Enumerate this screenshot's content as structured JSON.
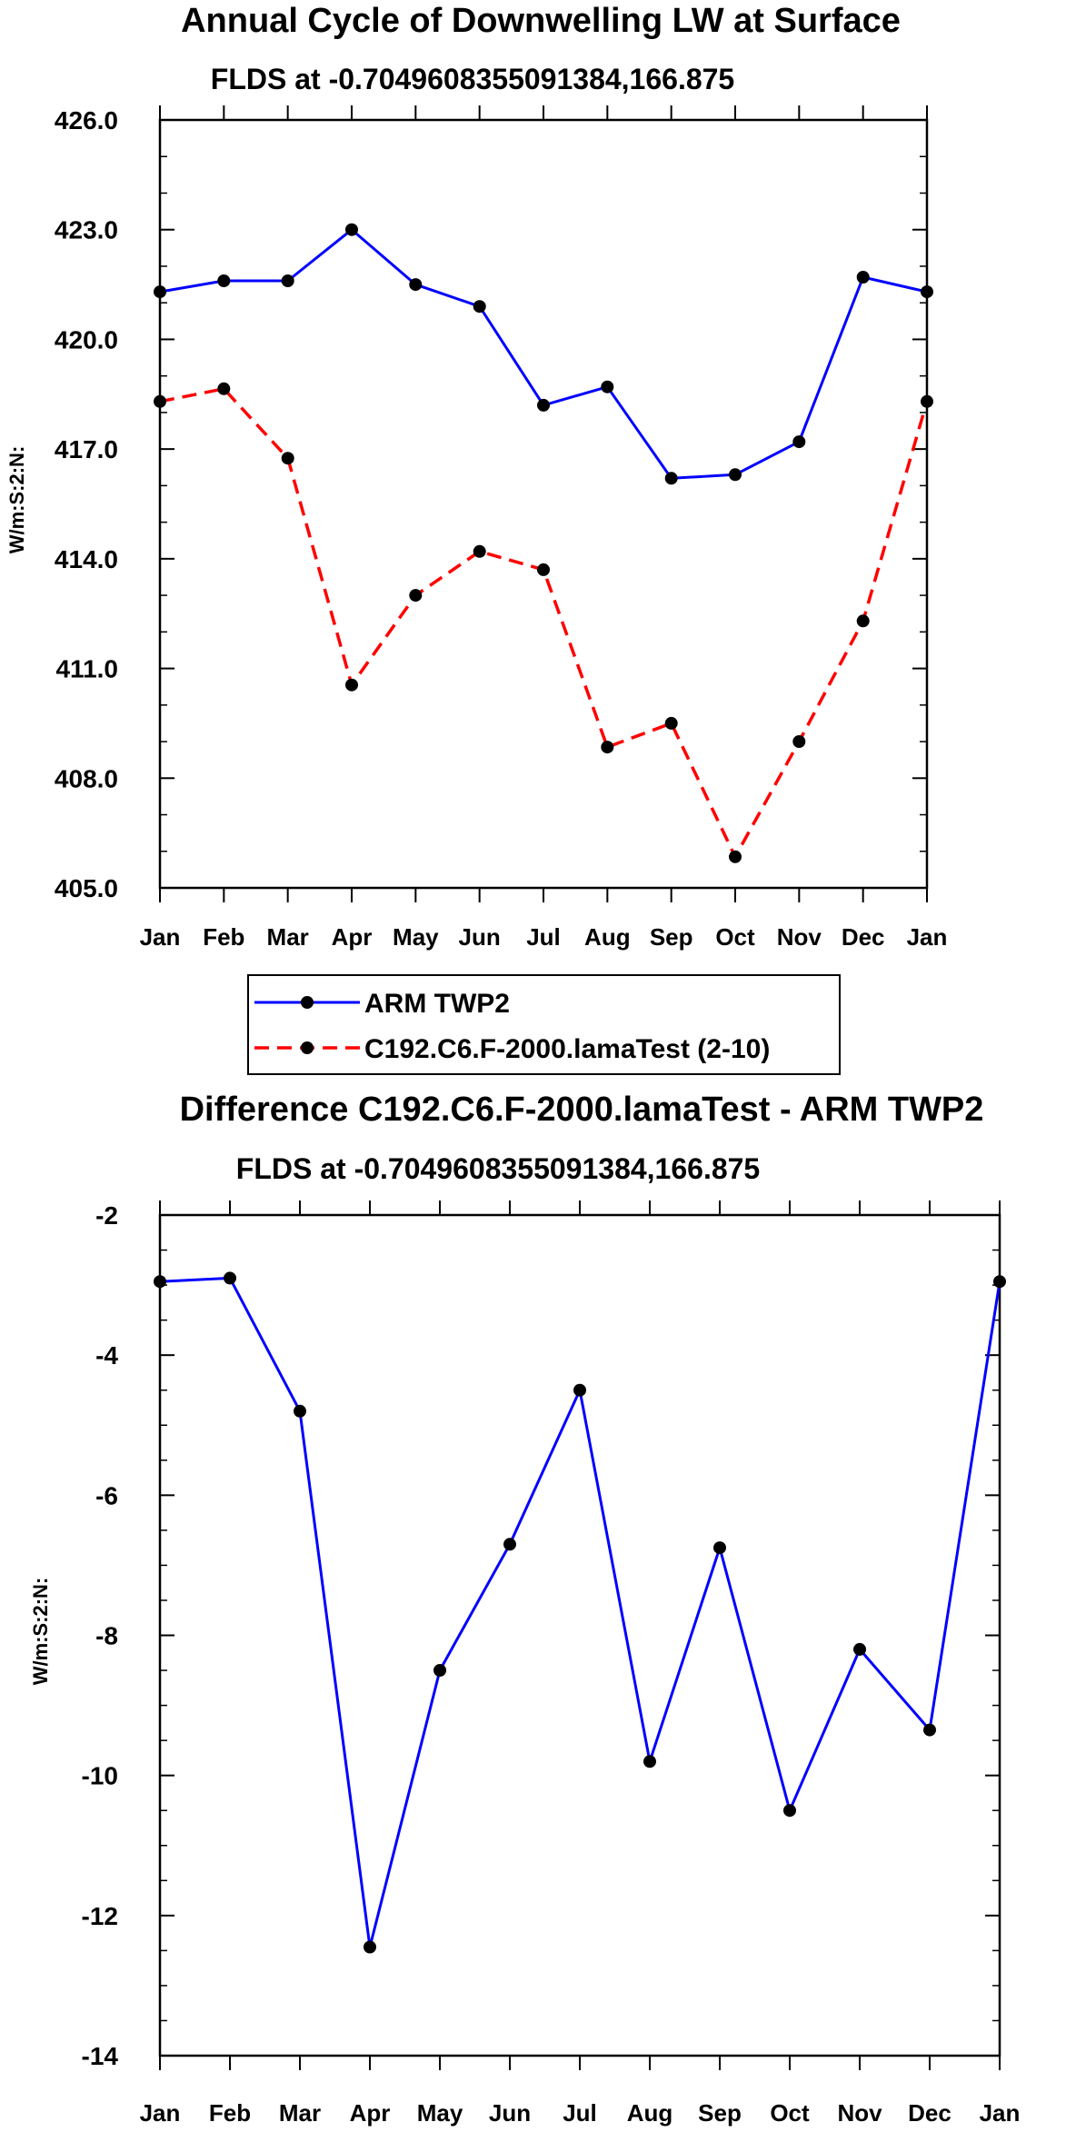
{
  "chart_data": [
    {
      "type": "line",
      "title": "Annual Cycle of Downwelling LW at Surface",
      "subtitle": "FLDS at -0.7049608355091384,166.875",
      "ylabel": "W/m:S:2:N:",
      "ylim": [
        405.0,
        426.0
      ],
      "yticks": [
        405.0,
        408.0,
        411.0,
        414.0,
        417.0,
        420.0,
        423.0,
        426.0
      ],
      "ytick_labels": [
        "405.0",
        "408.0",
        "411.0",
        "414.0",
        "417.0",
        "420.0",
        "423.0",
        "426.0"
      ],
      "categories": [
        "Jan",
        "Feb",
        "Mar",
        "Apr",
        "May",
        "Jun",
        "Jul",
        "Aug",
        "Sep",
        "Oct",
        "Nov",
        "Dec",
        "Jan"
      ],
      "series": [
        {
          "name": "ARM TWP2",
          "color": "#0000ff",
          "style": "solid",
          "values": [
            421.3,
            421.6,
            421.6,
            423.0,
            421.5,
            420.9,
            418.2,
            418.7,
            416.2,
            416.3,
            417.2,
            421.7,
            421.3
          ]
        },
        {
          "name": "C192.C6.F-2000.lamaTest (2-10)",
          "color": "#ff0000",
          "style": "dashed",
          "values": [
            418.3,
            418.65,
            416.75,
            410.55,
            413.0,
            414.2,
            413.7,
            408.85,
            409.5,
            405.85,
            409.0,
            412.3,
            418.3
          ]
        }
      ],
      "legend": "below"
    },
    {
      "type": "line",
      "title": "Difference C192.C6.F-2000.lamaTest - ARM TWP2",
      "subtitle": "FLDS at -0.7049608355091384,166.875",
      "ylabel": "W/m:S:2:N:",
      "ylim": [
        -14,
        -2
      ],
      "yticks": [
        -14,
        -12,
        -10,
        -8,
        -6,
        -4,
        -2
      ],
      "ytick_labels": [
        "-14",
        "-12",
        "-10",
        "-8",
        "-6",
        "-4",
        "-2"
      ],
      "categories": [
        "Jan",
        "Feb",
        "Mar",
        "Apr",
        "May",
        "Jun",
        "Jul",
        "Aug",
        "Sep",
        "Oct",
        "Nov",
        "Dec",
        "Jan"
      ],
      "series": [
        {
          "name": "Difference",
          "color": "#0000ff",
          "style": "solid",
          "values": [
            -2.95,
            -2.9,
            -4.8,
            -12.45,
            -8.5,
            -6.7,
            -4.5,
            -9.8,
            -6.75,
            -10.5,
            -8.2,
            -9.35,
            -2.95
          ]
        }
      ]
    }
  ]
}
